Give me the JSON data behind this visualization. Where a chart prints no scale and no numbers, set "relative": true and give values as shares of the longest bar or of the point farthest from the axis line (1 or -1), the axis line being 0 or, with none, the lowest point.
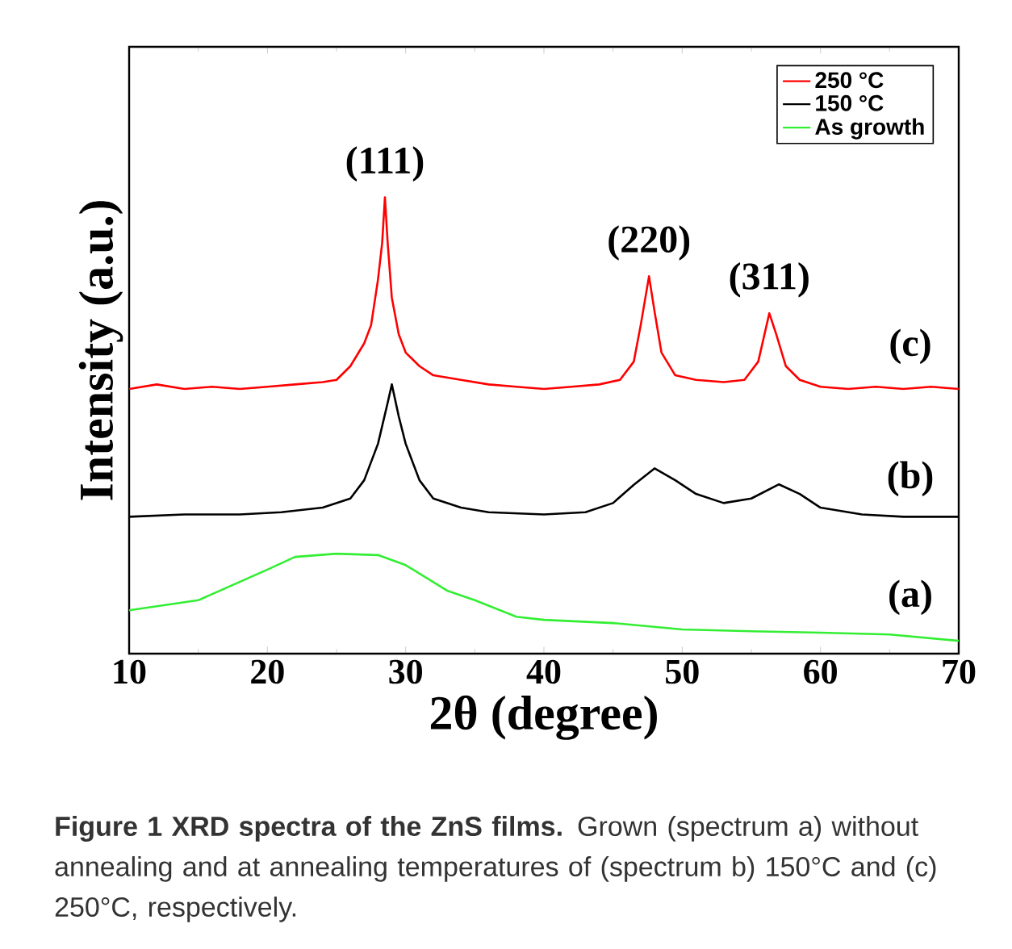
{
  "chart_data": {
    "type": "line",
    "relative": true,
    "xlabel": "2θ (degree)",
    "ylabel": "Intensity (a.u.)",
    "xlim": [
      10,
      70
    ],
    "xticks": [
      10,
      20,
      30,
      40,
      50,
      60,
      70
    ],
    "legend": "top right",
    "line_style": "solid",
    "marker": "none",
    "series": [
      {
        "name": "250 °C",
        "color": "#ff0000",
        "x": [
          10,
          12,
          14,
          16,
          18,
          20,
          22,
          24,
          25,
          26,
          27,
          27.5,
          28,
          28.3,
          28.5,
          28.7,
          29,
          29.5,
          30,
          31,
          32,
          34,
          36,
          38,
          40,
          42,
          44,
          45.5,
          46.5,
          47,
          47.6,
          48,
          48.5,
          49.5,
          51,
          53,
          54.5,
          55.5,
          56.3,
          56.8,
          57.5,
          58.5,
          60,
          62,
          64,
          66,
          68,
          70
        ],
        "values": [
          0.58,
          0.59,
          0.58,
          0.585,
          0.58,
          0.585,
          0.59,
          0.595,
          0.6,
          0.63,
          0.68,
          0.72,
          0.82,
          0.9,
          1.0,
          0.9,
          0.78,
          0.7,
          0.66,
          0.63,
          0.61,
          0.6,
          0.59,
          0.585,
          0.58,
          0.585,
          0.59,
          0.6,
          0.64,
          0.72,
          0.827,
          0.75,
          0.66,
          0.61,
          0.6,
          0.595,
          0.6,
          0.64,
          0.746,
          0.7,
          0.63,
          0.6,
          0.585,
          0.58,
          0.585,
          0.58,
          0.585,
          0.58
        ]
      },
      {
        "name": "150 °C",
        "color": "#000000",
        "x": [
          10,
          14,
          18,
          21,
          24,
          26,
          27,
          28,
          28.7,
          29,
          29.5,
          30,
          31,
          32,
          34,
          36,
          40,
          43,
          45,
          46.5,
          48,
          49.5,
          51,
          53,
          55,
          57,
          58.5,
          60,
          63,
          66,
          70
        ],
        "values": [
          0.3,
          0.305,
          0.305,
          0.31,
          0.32,
          0.34,
          0.38,
          0.46,
          0.55,
          0.59,
          0.52,
          0.46,
          0.38,
          0.34,
          0.32,
          0.31,
          0.305,
          0.31,
          0.33,
          0.37,
          0.406,
          0.38,
          0.35,
          0.33,
          0.34,
          0.371,
          0.35,
          0.32,
          0.305,
          0.3,
          0.3
        ]
      },
      {
        "name": "As growth",
        "color": "#33ee33",
        "x": [
          10,
          15,
          20,
          22,
          25,
          28,
          30,
          33,
          35,
          38,
          40,
          45,
          50,
          55,
          60,
          65,
          70
        ],
        "values": [
          0.095,
          0.117,
          0.184,
          0.212,
          0.219,
          0.216,
          0.194,
          0.138,
          0.117,
          0.081,
          0.074,
          0.067,
          0.053,
          0.049,
          0.046,
          0.042,
          0.028
        ]
      }
    ],
    "annotations": [
      {
        "text": "(111)",
        "x": 28.5,
        "y": 1.0
      },
      {
        "text": "(220)",
        "x": 47.6,
        "y": 0.827
      },
      {
        "text": "(311)",
        "x": 56.3,
        "y": 0.746
      },
      {
        "text": "(c)",
        "x": 66.5,
        "y": 0.6
      },
      {
        "text": "(b)",
        "x": 66.5,
        "y": 0.31
      },
      {
        "text": "(a)",
        "x": 66.5,
        "y": 0.05
      },
      "**Figure 1 XRD spectra of the ZnS films.** Grown (spectrum a) without annealing and at annealing temperatures of (spectrum b) 150°C and (c) 250°C, respectively."
    ]
  }
}
